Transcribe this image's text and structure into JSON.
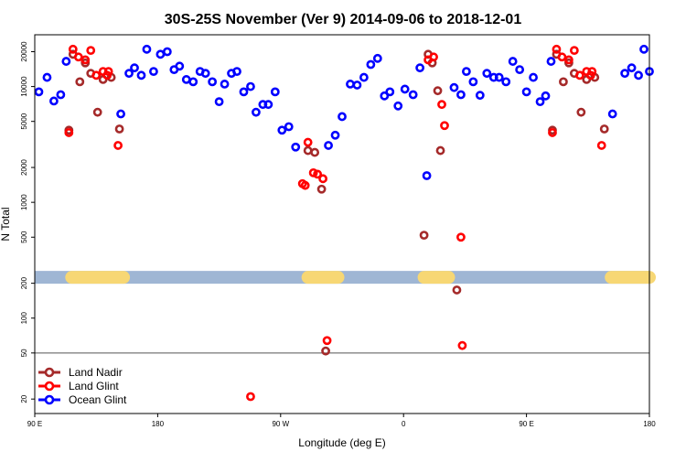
{
  "chart_data": {
    "type": "scatter",
    "title": "30S-25S November (Ver 9)   2014-09-06 to 2018-12-01",
    "xlabel": "Longitude (deg E)",
    "ylabel": "N Total",
    "xlim": [
      90,
      540
    ],
    "ylim": [
      15,
      28000
    ],
    "yscale": "log",
    "x_ticks": [
      {
        "value": 90,
        "label": "90 E"
      },
      {
        "value": 180,
        "label": "180"
      },
      {
        "value": 270,
        "label": "90 W"
      },
      {
        "value": 360,
        "label": "0"
      },
      {
        "value": 450,
        "label": "90 E"
      },
      {
        "value": 540,
        "label": "180"
      }
    ],
    "y_ticks": [
      {
        "value": 20,
        "label": "20"
      },
      {
        "value": 50,
        "label": "50"
      },
      {
        "value": 100,
        "label": "100"
      },
      {
        "value": 200,
        "label": "200"
      },
      {
        "value": 500,
        "label": "500"
      },
      {
        "value": 1000,
        "label": "1000"
      },
      {
        "value": 2000,
        "label": "2000"
      },
      {
        "value": 5000,
        "label": "5000"
      },
      {
        "value": 10000,
        "label": "10000"
      },
      {
        "value": 20000,
        "label": "20000"
      }
    ],
    "reference_line": 50,
    "band_value": 225,
    "band_color": "#9fb6d4",
    "land_color": "#f7d774",
    "land_segments": [
      [
        117,
        155
      ],
      [
        290,
        312
      ],
      [
        375,
        393
      ],
      [
        512,
        552
      ]
    ],
    "legend": [
      {
        "name": "Land Nadir",
        "color": "#a52a2a"
      },
      {
        "name": "Land Glint",
        "color": "#ff0000"
      },
      {
        "name": "Ocean Glint",
        "color": "#0000ff"
      }
    ],
    "series": [
      {
        "name": "Land Nadir",
        "color": "#a52a2a",
        "points": [
          [
            115,
            4200
          ],
          [
            118,
            19000
          ],
          [
            123,
            11000
          ],
          [
            127,
            16000
          ],
          [
            131,
            13000
          ],
          [
            136,
            6000
          ],
          [
            140,
            11500
          ],
          [
            146,
            12000
          ],
          [
            152,
            4300
          ],
          [
            290,
            2800
          ],
          [
            295,
            2700
          ],
          [
            300,
            1300
          ],
          [
            303,
            52
          ],
          [
            375,
            520
          ],
          [
            378,
            19000
          ],
          [
            381,
            16000
          ],
          [
            385,
            9200
          ],
          [
            387,
            2800
          ],
          [
            399,
            175
          ],
          [
            469,
            4200
          ],
          [
            472,
            19000
          ],
          [
            477,
            11000
          ],
          [
            481,
            16000
          ],
          [
            485,
            13000
          ],
          [
            490,
            6000
          ],
          [
            494,
            11500
          ],
          [
            500,
            12000
          ],
          [
            507,
            4300
          ]
        ]
      },
      {
        "name": "Land Glint",
        "color": "#ff0000",
        "points": [
          [
            115,
            4000
          ],
          [
            118,
            21000
          ],
          [
            122,
            18000
          ],
          [
            127,
            17000
          ],
          [
            131,
            20500
          ],
          [
            135,
            12500
          ],
          [
            140,
            13500
          ],
          [
            143,
            12500
          ],
          [
            144,
            13500
          ],
          [
            151,
            3100
          ],
          [
            248,
            21
          ],
          [
            286,
            1450
          ],
          [
            288,
            1400
          ],
          [
            290,
            3300
          ],
          [
            294,
            1800
          ],
          [
            297,
            1750
          ],
          [
            301,
            1600
          ],
          [
            304,
            64
          ],
          [
            378,
            17000
          ],
          [
            382,
            18000
          ],
          [
            388,
            7000
          ],
          [
            390,
            4600
          ],
          [
            402,
            500
          ],
          [
            403,
            58
          ],
          [
            469,
            4000
          ],
          [
            472,
            21000
          ],
          [
            476,
            18000
          ],
          [
            481,
            17000
          ],
          [
            485,
            20500
          ],
          [
            489,
            12500
          ],
          [
            494,
            13500
          ],
          [
            497,
            12500
          ],
          [
            498,
            13500
          ],
          [
            505,
            3100
          ]
        ]
      },
      {
        "name": "Ocean Glint",
        "color": "#0000ff",
        "points": [
          [
            93,
            9000
          ],
          [
            99,
            12000
          ],
          [
            104,
            7500
          ],
          [
            109,
            8500
          ],
          [
            113,
            16500
          ],
          [
            153,
            5800
          ],
          [
            159,
            13000
          ],
          [
            163,
            14500
          ],
          [
            168,
            12500
          ],
          [
            172,
            21000
          ],
          [
            177,
            13500
          ],
          [
            182,
            19000
          ],
          [
            187,
            20000
          ],
          [
            192,
            14000
          ],
          [
            196,
            15000
          ],
          [
            201,
            11500
          ],
          [
            206,
            11000
          ],
          [
            211,
            13500
          ],
          [
            215,
            13000
          ],
          [
            220,
            11000
          ],
          [
            225,
            7400
          ],
          [
            229,
            10500
          ],
          [
            234,
            13000
          ],
          [
            238,
            13500
          ],
          [
            243,
            9000
          ],
          [
            248,
            10000
          ],
          [
            252,
            6000
          ],
          [
            257,
            7000
          ],
          [
            261,
            7000
          ],
          [
            266,
            9000
          ],
          [
            271,
            4200
          ],
          [
            276,
            4500
          ],
          [
            281,
            3000
          ],
          [
            305,
            3100
          ],
          [
            310,
            3800
          ],
          [
            315,
            5500
          ],
          [
            321,
            10500
          ],
          [
            326,
            10300
          ],
          [
            331,
            12000
          ],
          [
            336,
            15500
          ],
          [
            341,
            17500
          ],
          [
            346,
            8300
          ],
          [
            350,
            9000
          ],
          [
            356,
            6800
          ],
          [
            361,
            9500
          ],
          [
            367,
            8500
          ],
          [
            372,
            14500
          ],
          [
            377,
            1700
          ],
          [
            397,
            9800
          ],
          [
            402,
            8500
          ],
          [
            406,
            13500
          ],
          [
            411,
            11000
          ],
          [
            416,
            8400
          ],
          [
            421,
            13000
          ],
          [
            426,
            12000
          ],
          [
            430,
            12000
          ],
          [
            435,
            11000
          ],
          [
            440,
            16500
          ],
          [
            445,
            14000
          ],
          [
            450,
            9000
          ],
          [
            455,
            12000
          ],
          [
            460,
            7400
          ],
          [
            464,
            8300
          ],
          [
            468,
            16500
          ],
          [
            513,
            5800
          ],
          [
            522,
            13000
          ],
          [
            527,
            14500
          ],
          [
            532,
            12500
          ],
          [
            536,
            21000
          ],
          [
            540,
            13500
          ]
        ]
      }
    ]
  }
}
